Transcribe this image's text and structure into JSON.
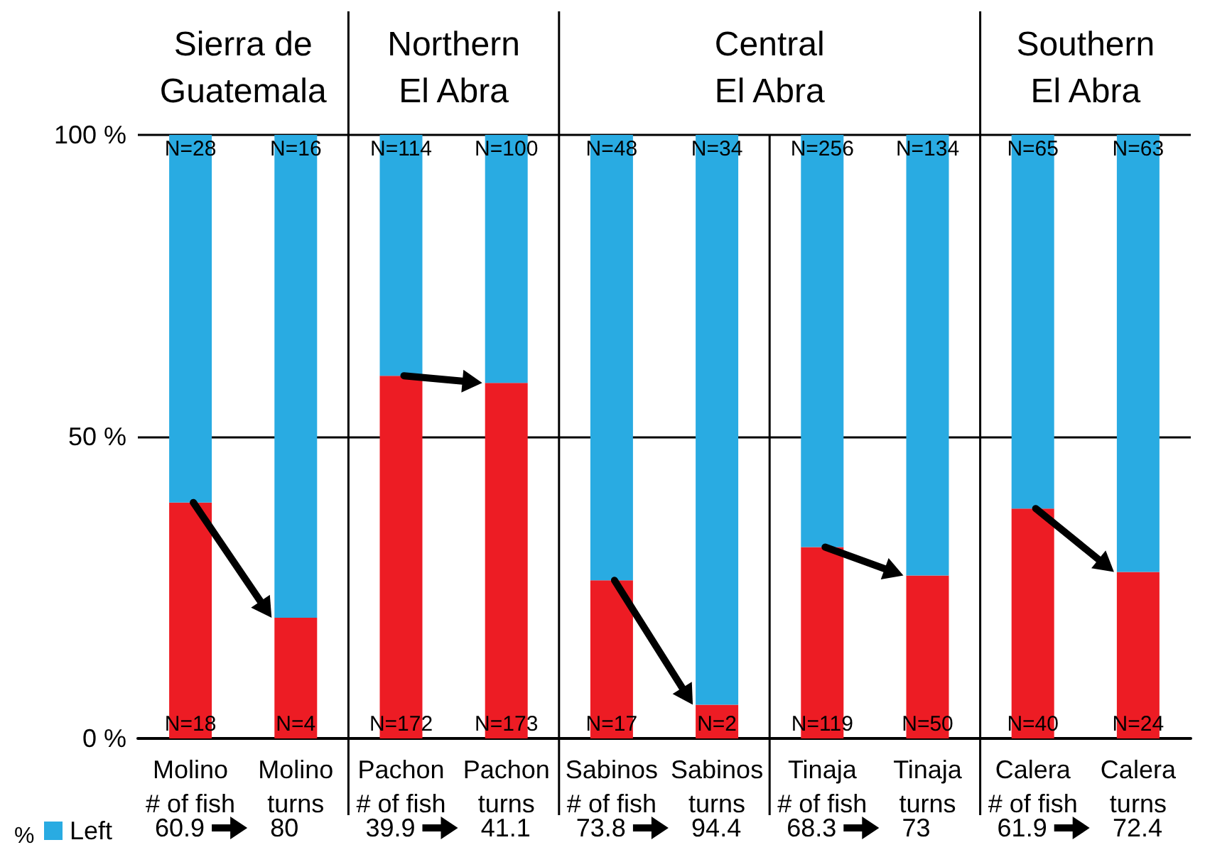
{
  "chart_data": {
    "type": "bar",
    "stacked": true,
    "categories": [
      "Molino\n# of fish",
      "Molino\nturns",
      "Pachon\n# of fish",
      "Pachon\nturns",
      "Sabinos\n# of fish",
      "Sabinos\nturns",
      "Tinaja\n# of fish",
      "Tinaja\nturns",
      "Calera\n# of fish",
      "Calera\nturns"
    ],
    "series": [
      {
        "color": "#ed1c24",
        "values": [
          39.1,
          20,
          60.1,
          58.9,
          26.2,
          5.6,
          31.7,
          27,
          38.1,
          27.6
        ]
      },
      {
        "name": "Left",
        "color": "#29abe2",
        "values": [
          60.9,
          80,
          39.9,
          41.1,
          73.8,
          94.4,
          68.3,
          73,
          61.9,
          72.4
        ],
        "value_labels": [
          "60.9",
          "80",
          "39.9",
          "41.1",
          "73.8",
          "94.4",
          "68.3",
          "73",
          "61.9",
          "72.4"
        ]
      }
    ],
    "legend_title": "%",
    "legend": "bottom left",
    "ylim": [
      0,
      100
    ],
    "yticks": [
      {
        "value": 0,
        "label": "0 %"
      },
      {
        "value": 50,
        "label": "50 %"
      },
      {
        "value": 100,
        "label": "100 %"
      }
    ],
    "grid": "y",
    "annotations": [
      "Sierra de\nGuatemala",
      "Northern\nEl Abra",
      "Central\nEl Abra",
      "Southern\nEl Abra",
      "N=28",
      "N=16",
      "N=114",
      "N=100",
      "N=48",
      "N=34",
      "N=256",
      "N=134",
      "N=65",
      "N=63",
      "N=18",
      "N=4",
      "N=172",
      "N=173",
      "N=17",
      "N=2",
      "N=119",
      "N=50",
      "N=40",
      "N=24"
    ]
  }
}
